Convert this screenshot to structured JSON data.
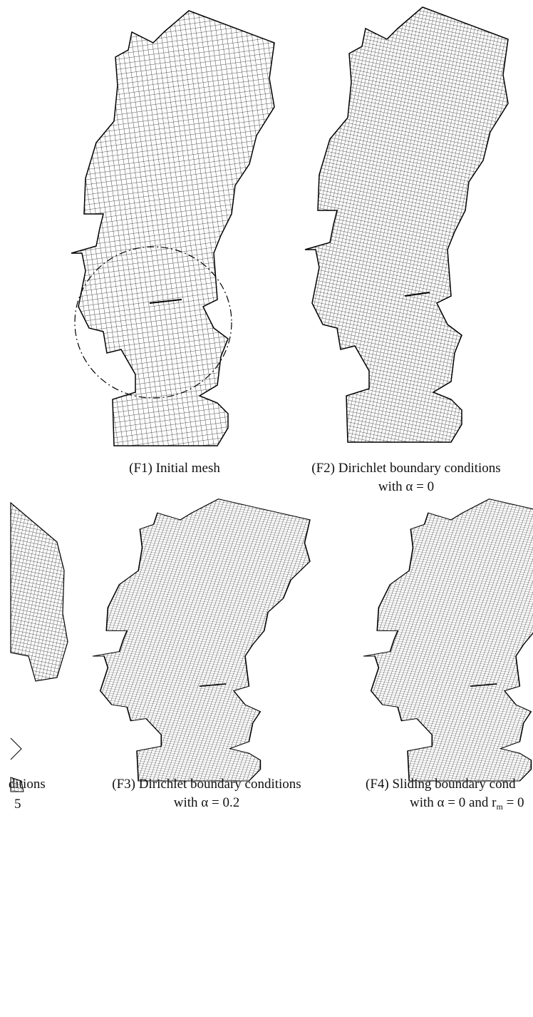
{
  "panels": [
    {
      "line1": "(F1) Initial mesh"
    },
    {
      "line1": "(F2) Dirichlet boundary conditions",
      "line2": "with α = 0"
    },
    {
      "line1": "(F3) Dirichlet boundary conditions",
      "line2": "with α = 0.2"
    },
    {
      "line1": "(F4) Sliding boundary cond",
      "line2a": "with α = 0 and r",
      "line2b": "m",
      "line2c": " = 0"
    },
    {
      "line1": "ditions",
      "line2": "5"
    }
  ]
}
